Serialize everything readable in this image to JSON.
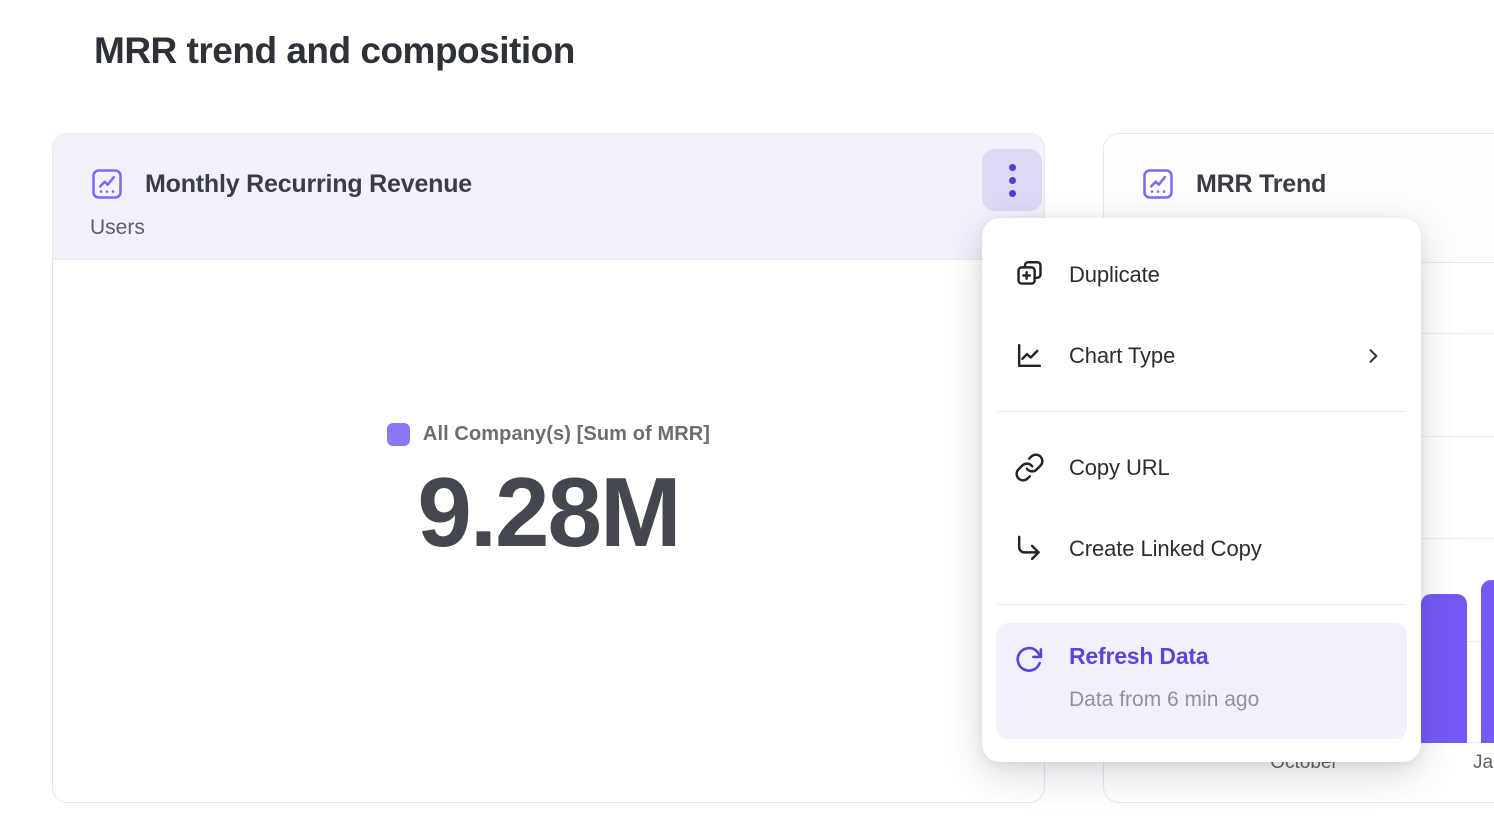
{
  "page": {
    "title": "MRR trend and composition"
  },
  "mrr_card": {
    "title": "Monthly Recurring Revenue",
    "subtitle": "Users",
    "legend_label": "All Company(s) [Sum of MRR]",
    "value": "9.28M"
  },
  "trend_card": {
    "title": "MRR Trend",
    "x_labels": [
      "October",
      "Ja"
    ]
  },
  "menu": {
    "duplicate_label": "Duplicate",
    "chart_type_label": "Chart Type",
    "copy_url_label": "Copy URL",
    "create_linked_copy_label": "Create Linked Copy",
    "refresh_label": "Refresh Data",
    "refresh_subtext": "Data from 6 min ago"
  },
  "colors": {
    "accent_purple": "#7659f7",
    "legend_swatch": "#8b76f3",
    "header_highlight": "#f2f1fc",
    "kebab_background": "#ddd9f4",
    "kebab_dots": "#4b3fd6",
    "refresh_text": "#5748d9",
    "refresh_highlight": "#f2f0fb",
    "value_text": "#45474e"
  },
  "chart_data": [
    {
      "type": "table",
      "title": "Monthly Recurring Revenue",
      "subtitle": "Users",
      "series_label": "All Company(s) [Sum of MRR]",
      "displayed_value": "9.28M",
      "numeric_value": 9280000
    },
    {
      "type": "bar",
      "title": "MRR Trend",
      "categories": [
        "October",
        "Ja"
      ],
      "values_relative": [
        0.31,
        0.34
      ],
      "gridlines": true,
      "bar_color": "#7659f7",
      "note": "chart partially occluded by open context menu; no value labels visible"
    }
  ]
}
